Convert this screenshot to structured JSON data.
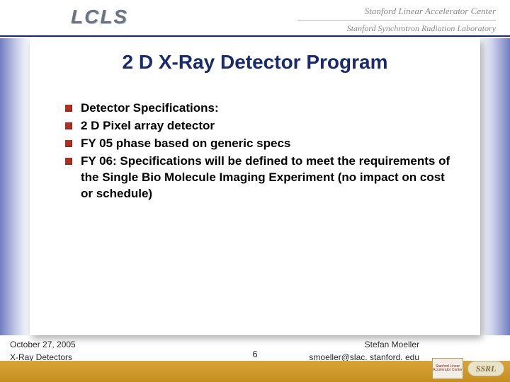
{
  "header": {
    "logo_text": "LCLS",
    "org_line1": "Stanford Linear Accelerator Center",
    "org_line2": "Stanford Synchrotron Radiation Laboratory"
  },
  "slide": {
    "title": "2 D X-Ray Detector Program",
    "bullets": [
      "Detector Specifications:",
      "2 D Pixel array detector",
      "FY 05 phase based on generic specs",
      "FY 06: Specifications will be defined to meet the requirements of the Single Bio Molecule Imaging Experiment (no impact on cost or schedule)"
    ]
  },
  "footer": {
    "date": "October 27, 2005",
    "topic": "X-Ray Detectors",
    "page_number": "6",
    "author": "Stefan Moeller",
    "email": "smoeller@slac. stanford. edu",
    "mini_logo_text": "Stanford Linear Accelerator Center",
    "ssrl_text": "SSRL"
  },
  "colors": {
    "title_color": "#1a2b6d",
    "bullet_color": "#b03020",
    "footer_bar": "#d9a437"
  }
}
